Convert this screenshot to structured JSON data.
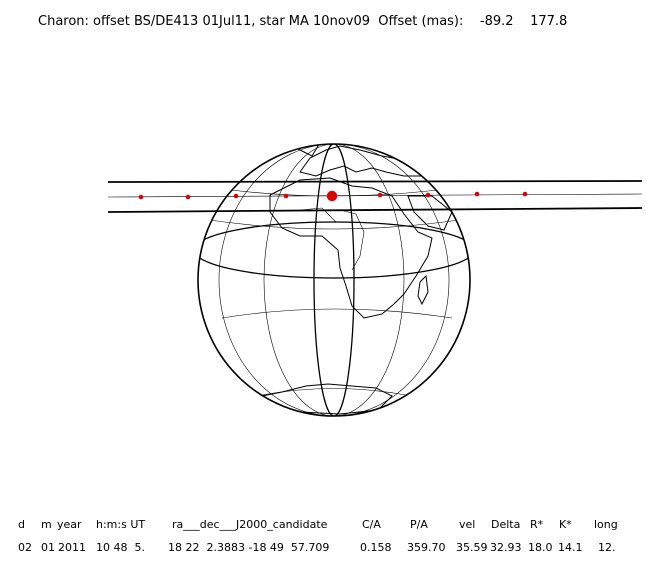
{
  "title": "Charon: offset BS/DE413 01Jul11, star MA 10nov09  Offset (mas):    -89.2    177.8",
  "table": {
    "headers": [
      "d",
      "m",
      "year",
      "h:m:s UT",
      "ra___dec___J2000_candidate",
      "C/A",
      "P/A",
      "vel",
      "Delta",
      "R*",
      "K*",
      "long"
    ],
    "values": [
      "02",
      "01",
      "2011",
      "10 48  5.",
      "18 22  2.3883 -18 49  57.709",
      "0.158",
      "359.70",
      "35.59",
      "32.93",
      "18.0",
      "14.1",
      "12."
    ]
  },
  "colors": {
    "ink": "#000000",
    "path_points": "#e00000",
    "grid": "#000000"
  },
  "icons": {
    "globe": "earth-globe-africa-europe",
    "marker": "red-dot"
  }
}
